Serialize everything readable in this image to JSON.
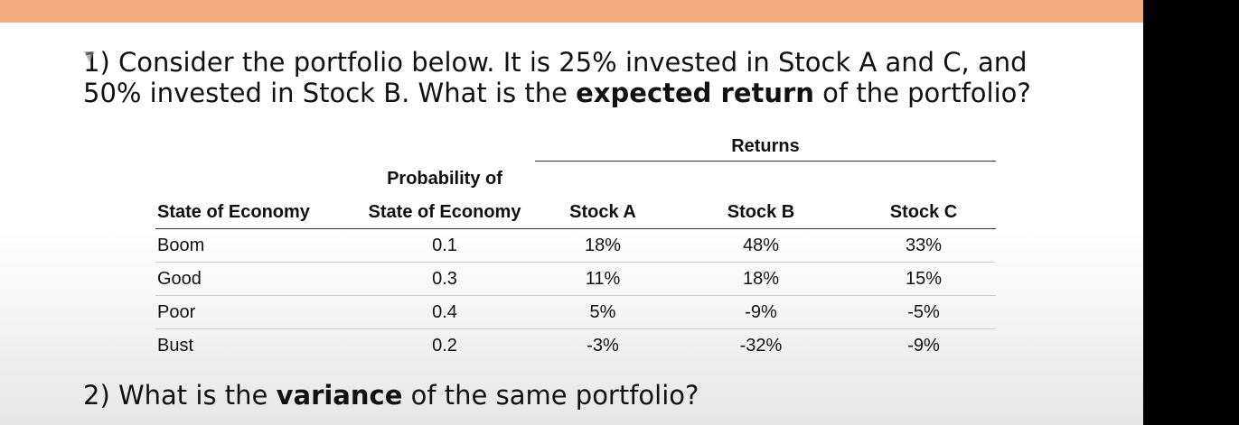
{
  "question1": {
    "prefix": "1) Consider the portfolio below. It is 25% invested in Stock A and C, and",
    "line2_pre": "50% invested in Stock B. What is the ",
    "bold": "expected return",
    "line2_post": " of the portfolio?"
  },
  "table": {
    "returns_label": "Returns",
    "col_state": "State of Economy",
    "col_prob_top": "Probability of",
    "col_prob_bottom": "State of Economy",
    "col_a": "Stock A",
    "col_b": "Stock B",
    "col_c": "Stock C",
    "rows": [
      {
        "state": "Boom",
        "prob": "0.1",
        "a": "18%",
        "b": "48%",
        "c": "33%"
      },
      {
        "state": "Good",
        "prob": "0.3",
        "a": "11%",
        "b": "18%",
        "c": "15%"
      },
      {
        "state": "Poor",
        "prob": "0.4",
        "a": "5%",
        "b": "-9%",
        "c": "-5%"
      },
      {
        "state": "Bust",
        "prob": "0.2",
        "a": "-3%",
        "b": "-32%",
        "c": "-9%"
      }
    ]
  },
  "question2": {
    "pre": "2) What is the ",
    "bold": "variance",
    "post": " of the same portfolio?"
  }
}
